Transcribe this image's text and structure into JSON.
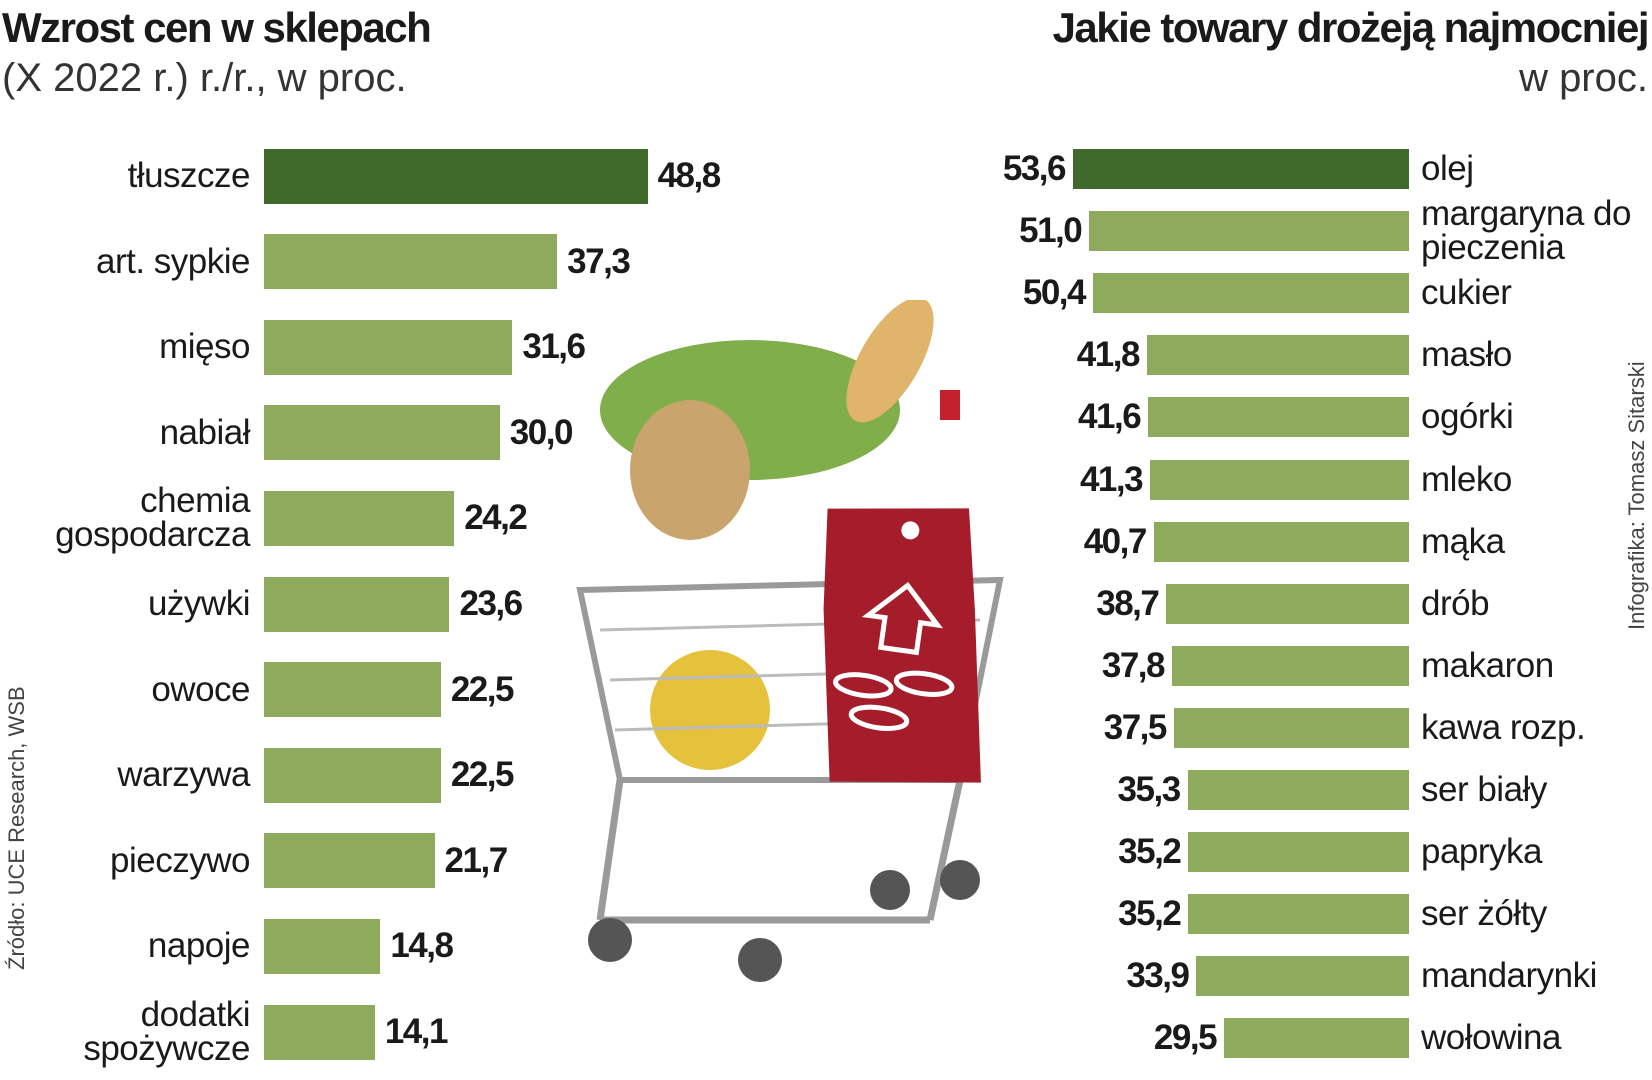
{
  "chart_data": [
    {
      "type": "bar",
      "orientation": "horizontal",
      "title": "Wzrost cen w sklepach",
      "subtitle": "(X 2022 r.) r./r., w proc.",
      "categories": [
        "tłuszcze",
        "art. sypkie",
        "mięso",
        "nabiał",
        "chemia gospodarcza",
        "używki",
        "owoce",
        "warzywa",
        "pieczywo",
        "napoje",
        "dodatki spożywcze"
      ],
      "values": [
        48.8,
        37.3,
        31.6,
        30.0,
        24.2,
        23.6,
        22.5,
        22.5,
        21.7,
        14.8,
        14.1
      ],
      "value_labels": [
        "48,8",
        "37,3",
        "31,6",
        "30,0",
        "24,2",
        "23,6",
        "22,5",
        "22,5",
        "21,7",
        "14,8",
        "14,1"
      ],
      "colors": [
        "#3f6a2b",
        "#8eaa5c",
        "#8eaa5c",
        "#8eaa5c",
        "#8eaa5c",
        "#8eaa5c",
        "#8eaa5c",
        "#8eaa5c",
        "#8eaa5c",
        "#8eaa5c",
        "#8eaa5c"
      ],
      "source": "Źródło: UCE Research, WSB"
    },
    {
      "type": "bar",
      "orientation": "horizontal",
      "title": "Jakie towary drożeją najmocniej",
      "subtitle": "w proc.",
      "categories": [
        "olej",
        "margaryna do pieczenia",
        "cukier",
        "masło",
        "ogórki",
        "mleko",
        "mąka",
        "drób",
        "makaron",
        "kawa rozp.",
        "ser biały",
        "papryka",
        "ser żółty",
        "mandarynki",
        "wołowina"
      ],
      "values": [
        53.6,
        51.0,
        50.4,
        41.8,
        41.6,
        41.3,
        40.7,
        38.7,
        37.8,
        37.5,
        35.3,
        35.2,
        35.2,
        33.9,
        29.5
      ],
      "value_labels": [
        "53,6",
        "51,0",
        "50,4",
        "41,8",
        "41,6",
        "41,3",
        "40,7",
        "38,7",
        "37,8",
        "37,5",
        "35,3",
        "35,2",
        "35,2",
        "33,9",
        "29,5"
      ],
      "colors": [
        "#3f6a2b",
        "#8eaa5c",
        "#8eaa5c",
        "#8eaa5c",
        "#8eaa5c",
        "#8eaa5c",
        "#8eaa5c",
        "#8eaa5c",
        "#8eaa5c",
        "#8eaa5c",
        "#8eaa5c",
        "#8eaa5c",
        "#8eaa5c",
        "#8eaa5c",
        "#8eaa5c"
      ],
      "credit": "Infografika: Tomasz Sitarski"
    }
  ]
}
